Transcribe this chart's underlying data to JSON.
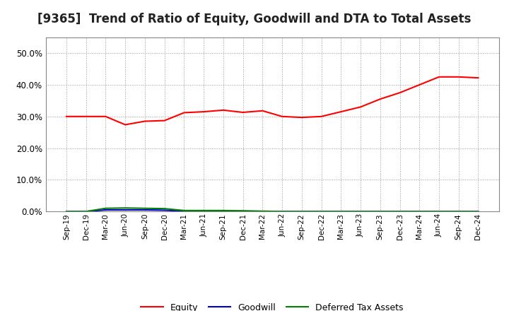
{
  "title": "[9365]  Trend of Ratio of Equity, Goodwill and DTA to Total Assets",
  "x_labels": [
    "Sep-19",
    "Dec-19",
    "Mar-20",
    "Jun-20",
    "Sep-20",
    "Dec-20",
    "Mar-21",
    "Jun-21",
    "Sep-21",
    "Dec-21",
    "Mar-22",
    "Jun-22",
    "Sep-22",
    "Dec-22",
    "Mar-23",
    "Jun-23",
    "Sep-23",
    "Dec-23",
    "Mar-24",
    "Jun-24",
    "Sep-24",
    "Dec-24"
  ],
  "equity": [
    0.3,
    0.3,
    0.3,
    0.274,
    0.285,
    0.287,
    0.312,
    0.315,
    0.32,
    0.313,
    0.318,
    0.3,
    0.297,
    0.3,
    0.315,
    0.33,
    0.355,
    0.375,
    0.4,
    0.425,
    0.425,
    0.422
  ],
  "goodwill": [
    0.0,
    0.0,
    0.005,
    0.005,
    0.005,
    0.004,
    0.001,
    0.001,
    0.001,
    0.001,
    0.0,
    0.0,
    0.0,
    0.0,
    0.0,
    0.0,
    0.0,
    0.0,
    0.0,
    0.0,
    0.0,
    0.0
  ],
  "dta": [
    0.0,
    0.0,
    0.01,
    0.011,
    0.01,
    0.009,
    0.003,
    0.003,
    0.003,
    0.002,
    0.001,
    0.0,
    0.0,
    0.0,
    0.0,
    0.0,
    0.0,
    0.0,
    0.0,
    0.0,
    0.0,
    0.0
  ],
  "equity_color": "#FF0000",
  "goodwill_color": "#0000CC",
  "dta_color": "#008000",
  "ylim": [
    0.0,
    0.55
  ],
  "yticks": [
    0.0,
    0.1,
    0.2,
    0.3,
    0.4,
    0.5
  ],
  "background_color": "#FFFFFF",
  "plot_bg_color": "#FFFFFF",
  "grid_color": "#999999",
  "title_fontsize": 12,
  "legend_labels": [
    "Equity",
    "Goodwill",
    "Deferred Tax Assets"
  ],
  "line_width": 1.5
}
